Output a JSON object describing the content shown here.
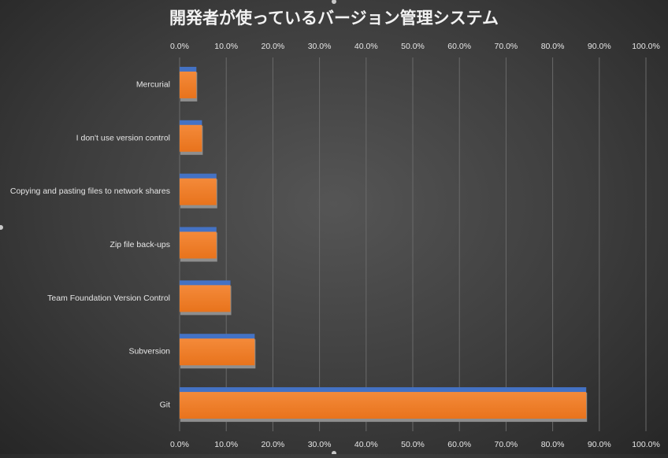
{
  "chart_data": {
    "type": "bar",
    "orientation": "horizontal",
    "title": "開発者が使っているバージョン管理システム",
    "xlabel": "",
    "ylabel": "",
    "xlim": [
      0,
      100
    ],
    "tick_values": [
      0,
      10,
      20,
      30,
      40,
      50,
      60,
      70,
      80,
      90,
      100
    ],
    "tick_labels": [
      "0.0%",
      "10.0%",
      "20.0%",
      "30.0%",
      "40.0%",
      "50.0%",
      "60.0%",
      "70.0%",
      "80.0%",
      "90.0%",
      "100.0%"
    ],
    "axis_position": "top and bottom",
    "grid": true,
    "legend": "none",
    "categories": [
      "Mercurial",
      "I don't use version control",
      "Copying and pasting files to network shares",
      "Zip file back-ups",
      "Team Foundation Version Control",
      "Subversion",
      "Git"
    ],
    "series": [
      {
        "values": [
          3.6,
          4.8,
          7.9,
          7.9,
          10.9,
          16.1,
          87.2
        ],
        "color": "#4472C4"
      },
      {
        "values": [
          3.6,
          4.8,
          7.9,
          7.9,
          10.9,
          16.1,
          87.2
        ],
        "color": "#F07F2A"
      }
    ]
  }
}
